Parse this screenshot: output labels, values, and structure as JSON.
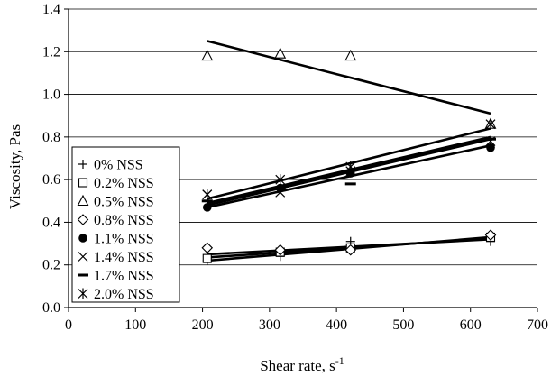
{
  "chart_data": {
    "type": "scatter",
    "xlabel": "Shear rate, s",
    "xlabel_superscript": "-1",
    "ylabel": "Viscosity, Pas",
    "xlim": [
      0,
      700
    ],
    "ylim": [
      0.0,
      1.4
    ],
    "x_ticks": [
      "0",
      "100",
      "200",
      "300",
      "400",
      "500",
      "600",
      "700"
    ],
    "y_ticks": [
      "0.0",
      "0.2",
      "0.4",
      "0.6",
      "0.8",
      "1.0",
      "1.2",
      "1.4"
    ],
    "grid": "horizontal",
    "legend_position": "left",
    "series": [
      {
        "name": "0% NSS",
        "marker": "plus",
        "points": [
          [
            207,
            0.22
          ],
          [
            316,
            0.24
          ],
          [
            421,
            0.31
          ],
          [
            630,
            0.31
          ]
        ],
        "trend": [
          [
            207,
            0.22
          ],
          [
            630,
            0.33
          ]
        ]
      },
      {
        "name": "0.2% NSS",
        "marker": "square",
        "points": [
          [
            207,
            0.23
          ],
          [
            316,
            0.26
          ],
          [
            421,
            0.28
          ],
          [
            630,
            0.33
          ]
        ],
        "trend": [
          [
            207,
            0.235
          ],
          [
            630,
            0.325
          ]
        ]
      },
      {
        "name": "0.5% NSS",
        "marker": "triangle",
        "points": [
          [
            207,
            1.18
          ],
          [
            316,
            1.19
          ],
          [
            421,
            1.18
          ],
          [
            630,
            0.86
          ]
        ],
        "trend": [
          [
            207,
            1.25
          ],
          [
            630,
            0.91
          ]
        ]
      },
      {
        "name": "0.8% NSS",
        "marker": "diamond",
        "points": [
          [
            207,
            0.28
          ],
          [
            316,
            0.27
          ],
          [
            421,
            0.27
          ],
          [
            630,
            0.34
          ]
        ],
        "trend": [
          [
            207,
            0.25
          ],
          [
            630,
            0.32
          ]
        ]
      },
      {
        "name": "1.1% NSS",
        "marker": "circle",
        "points": [
          [
            207,
            0.47
          ],
          [
            316,
            0.56
          ],
          [
            421,
            0.63
          ],
          [
            630,
            0.75
          ]
        ],
        "trend": [
          [
            207,
            0.47
          ],
          [
            630,
            0.76
          ]
        ]
      },
      {
        "name": "1.4% NSS",
        "marker": "x",
        "points": [
          [
            207,
            0.53
          ],
          [
            316,
            0.54
          ],
          [
            421,
            0.64
          ],
          [
            630,
            0.78
          ]
        ],
        "trend": [
          [
            207,
            0.48
          ],
          [
            630,
            0.79
          ]
        ]
      },
      {
        "name": "1.7% NSS",
        "marker": "dash",
        "points": [
          [
            207,
            0.5
          ],
          [
            316,
            0.56
          ],
          [
            421,
            0.58
          ],
          [
            630,
            0.79
          ]
        ],
        "trend": [
          [
            207,
            0.49
          ],
          [
            630,
            0.8
          ]
        ]
      },
      {
        "name": "2.0% NSS",
        "marker": "asterisk",
        "points": [
          [
            207,
            0.53
          ],
          [
            316,
            0.6
          ],
          [
            421,
            0.66
          ],
          [
            630,
            0.86
          ]
        ],
        "trend": [
          [
            207,
            0.51
          ],
          [
            630,
            0.84
          ]
        ]
      }
    ]
  }
}
